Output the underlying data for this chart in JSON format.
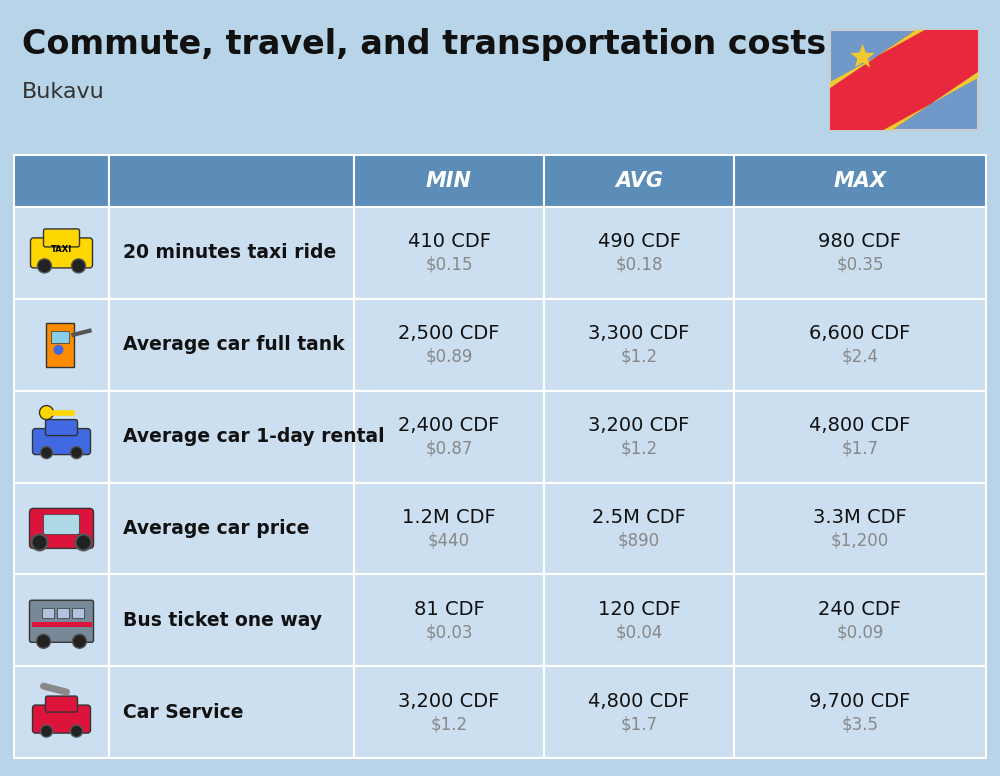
{
  "title": "Commute, travel, and transportation costs",
  "subtitle": "Bukavu",
  "background_color": "#b8d4e8",
  "header_color": "#5b8db8",
  "header_text_color": "#ffffff",
  "row_color": "#ccdff0",
  "col_headers": [
    "MIN",
    "AVG",
    "MAX"
  ],
  "rows": [
    {
      "label": "20 minutes taxi ride",
      "min_cdf": "410 CDF",
      "min_usd": "$0.15",
      "avg_cdf": "490 CDF",
      "avg_usd": "$0.18",
      "max_cdf": "980 CDF",
      "max_usd": "$0.35"
    },
    {
      "label": "Average car full tank",
      "min_cdf": "2,500 CDF",
      "min_usd": "$0.89",
      "avg_cdf": "3,300 CDF",
      "avg_usd": "$1.2",
      "max_cdf": "6,600 CDF",
      "max_usd": "$2.4"
    },
    {
      "label": "Average car 1-day rental",
      "min_cdf": "2,400 CDF",
      "min_usd": "$0.87",
      "avg_cdf": "3,200 CDF",
      "avg_usd": "$1.2",
      "max_cdf": "4,800 CDF",
      "max_usd": "$1.7"
    },
    {
      "label": "Average car price",
      "min_cdf": "1.2M CDF",
      "min_usd": "$440",
      "avg_cdf": "2.5M CDF",
      "avg_usd": "$890",
      "max_cdf": "3.3M CDF",
      "max_usd": "$1,200"
    },
    {
      "label": "Bus ticket one way",
      "min_cdf": "81 CDF",
      "min_usd": "$0.03",
      "avg_cdf": "120 CDF",
      "avg_usd": "$0.04",
      "max_cdf": "240 CDF",
      "max_usd": "$0.09"
    },
    {
      "label": "Car Service",
      "min_cdf": "3,200 CDF",
      "min_usd": "$1.2",
      "avg_cdf": "4,800 CDF",
      "avg_usd": "$1.7",
      "max_cdf": "9,700 CDF",
      "max_usd": "$3.5"
    }
  ],
  "flag_colors": {
    "blue": "#7098c8",
    "red": "#e8283c",
    "yellow": "#f0c830"
  },
  "icon_emojis": [
    "🚕",
    "⛽",
    "🗝",
    "🚗",
    "🚌",
    "🔧"
  ]
}
